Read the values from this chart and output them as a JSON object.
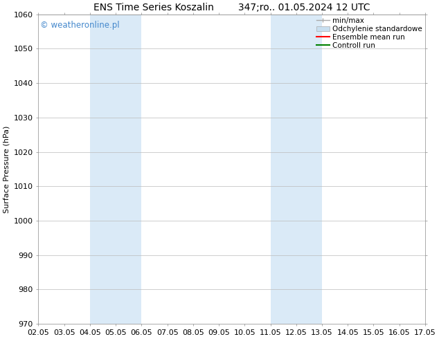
{
  "title_left": "ENS Time Series Koszalin",
  "title_right": "347;ro.. 01.05.2024 12 UTC",
  "ylabel": "Surface Pressure (hPa)",
  "ylim": [
    970,
    1060
  ],
  "yticks": [
    970,
    980,
    990,
    1000,
    1010,
    1020,
    1030,
    1040,
    1050,
    1060
  ],
  "xtick_labels": [
    "02.05",
    "03.05",
    "04.05",
    "05.05",
    "06.05",
    "07.05",
    "08.05",
    "09.05",
    "10.05",
    "11.05",
    "12.05",
    "13.05",
    "14.05",
    "15.05",
    "16.05",
    "17.05"
  ],
  "xlim": [
    0,
    15
  ],
  "shaded_regions": [
    {
      "xmin": 2,
      "xmax": 4,
      "color": "#daeaf7"
    },
    {
      "xmin": 9,
      "xmax": 11,
      "color": "#daeaf7"
    }
  ],
  "bg_color": "#ffffff",
  "plot_bg_color": "#ffffff",
  "grid_color": "#bbbbbb",
  "watermark": "© weatheronline.pl",
  "watermark_color": "#4488cc",
  "legend_labels": [
    "min/max",
    "Odchylenie standardowe",
    "Ensemble mean run",
    "Controll run"
  ],
  "minmax_color": "#aaaaaa",
  "std_color": "#c8dff0",
  "mean_color": "#ff0000",
  "control_color": "#008000",
  "title_fontsize": 10,
  "axis_fontsize": 8,
  "ylabel_fontsize": 8,
  "legend_fontsize": 7.5
}
